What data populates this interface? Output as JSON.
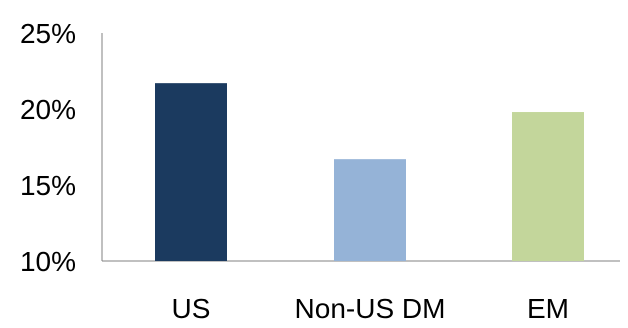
{
  "chart_data": {
    "type": "bar",
    "title": "",
    "xlabel": "",
    "ylabel": "",
    "categories": [
      "US",
      "Non-US DM",
      "EM"
    ],
    "values": [
      21.7,
      16.7,
      19.8
    ],
    "colors": [
      "#1b3a5f",
      "#95b3d7",
      "#c3d69b"
    ],
    "ylim": [
      10,
      25
    ],
    "yticks": [
      10,
      15,
      20,
      25
    ],
    "ytick_labels": [
      "10%",
      "15%",
      "20%",
      "25%"
    ],
    "grid": false,
    "legend": "none"
  }
}
